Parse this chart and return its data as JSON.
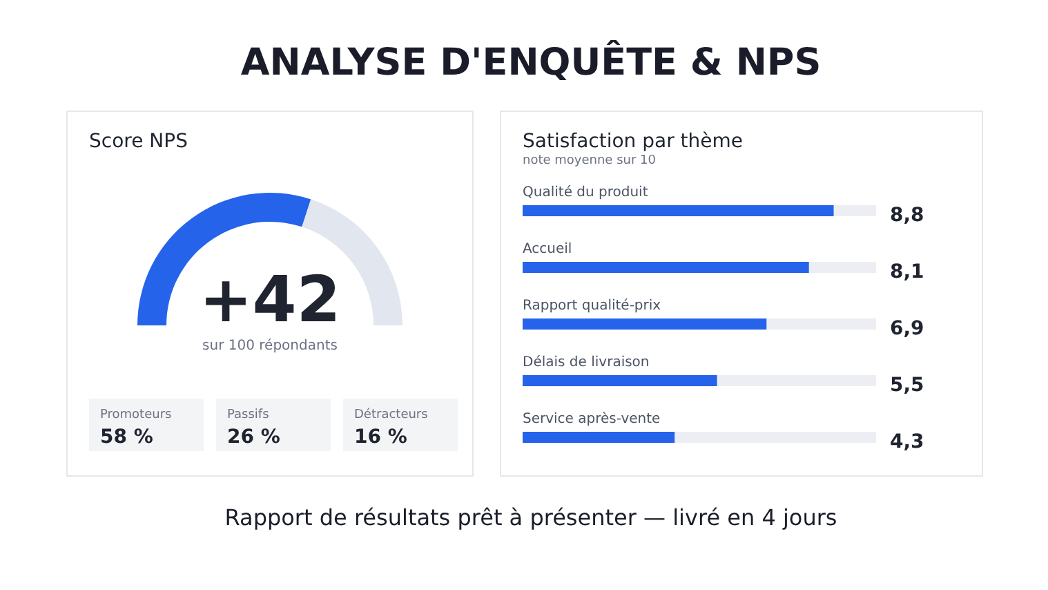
{
  "chart_data": [
    {
      "type": "donut",
      "title": "Score NPS",
      "categories": [
        null,
        null
      ],
      "values": [
        60,
        40
      ],
      "colors": [
        "#2563eb",
        "#e2e6ee"
      ],
      "annotations": [
        "+42",
        "sur 100 répondants",
        "Promoteurs",
        "58 %",
        "Passifs",
        "26 %",
        "Détracteurs",
        "16 %"
      ]
    },
    {
      "type": "bar",
      "orientation": "horizontal",
      "title": "Satisfaction par thème",
      "subtitle": "note moyenne sur 10",
      "categories": [
        "Qualité du produit",
        "Accueil",
        "Rapport qualité-prix",
        "Délais de livraison",
        "Service après-vente"
      ],
      "values": [
        8.8,
        8.1,
        6.9,
        5.5,
        4.3
      ],
      "color": "#2563eb",
      "xlim": [
        0,
        10
      ],
      "value_labels": [
        "8,8",
        "8,1",
        "6,9",
        "5,5",
        "4,3"
      ]
    },
    {
      "type": "other",
      "title": "ANALYSE D'ENQUÊTE & NPS",
      "annotations": [
        "Rapport de résultats prêt à présenter  —  livré en 4 jours"
      ]
    }
  ]
}
